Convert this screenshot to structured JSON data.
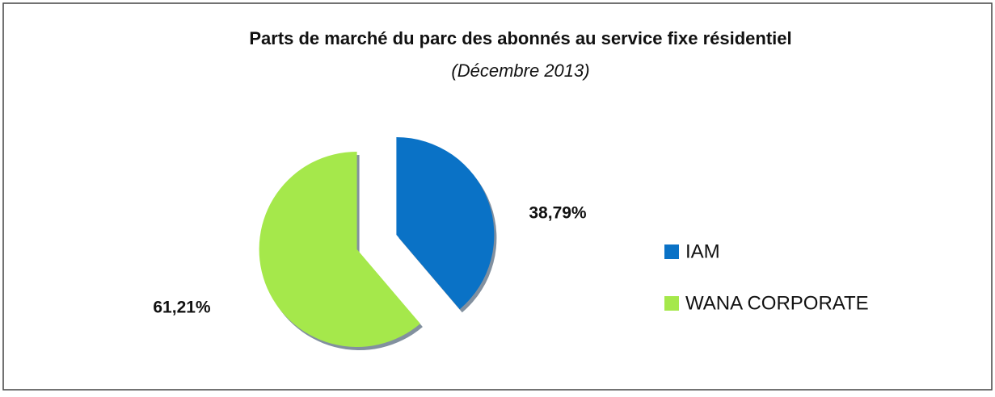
{
  "chart_data": {
    "type": "pie",
    "title": "Parts de marché du parc des abonnés au service fixe résidentiel",
    "subtitle": "(Décembre 2013)",
    "categories": [
      "IAM",
      "WANA CORPORATE"
    ],
    "values": [
      38.79,
      61.21
    ],
    "value_labels": [
      "38,79%",
      "61,21%"
    ],
    "colors": [
      "#0a72c6",
      "#a5e84b"
    ],
    "legend": "right"
  }
}
